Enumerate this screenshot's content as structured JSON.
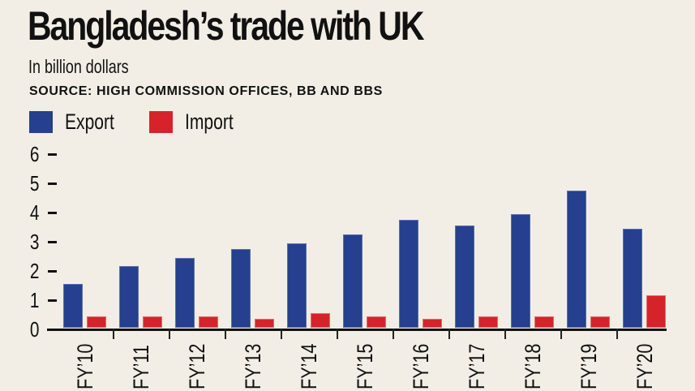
{
  "header": {
    "title": "Bangladesh’s trade with UK",
    "subtitle": "In billion dollars",
    "source": "SOURCE: HIGH COMMISSION OFFICES, BB AND BBS"
  },
  "legend": [
    {
      "label": "Export",
      "color": "#263f8f"
    },
    {
      "label": "Import",
      "color": "#d6232b"
    }
  ],
  "yaxis": {
    "ticks": [
      "0",
      "1",
      "2",
      "3",
      "4",
      "5",
      "6"
    ]
  },
  "chart_data": {
    "type": "bar",
    "title": "Bangladesh’s trade with UK",
    "subtitle": "In billion dollars",
    "source": "SOURCE: HIGH COMMISSION OFFICES, BB AND BBS",
    "xlabel": "",
    "ylabel": "",
    "ylim": [
      0,
      6
    ],
    "yticks": [
      0,
      1,
      2,
      3,
      4,
      5,
      6
    ],
    "grid": false,
    "legend_position": "top-left",
    "categories": [
      "FY’10",
      "FY’11",
      "FY’12",
      "FY’13",
      "FY’14",
      "FY’15",
      "FY’16",
      "FY’17",
      "FY’18",
      "FY’19",
      "FY’20"
    ],
    "series": [
      {
        "name": "Export",
        "color": "#263f8f",
        "values": [
          1.5,
          2.1,
          2.4,
          2.7,
          2.9,
          3.2,
          3.7,
          3.5,
          3.9,
          4.7,
          3.4
        ]
      },
      {
        "name": "Import",
        "color": "#d6232b",
        "values": [
          0.4,
          0.4,
          0.4,
          0.3,
          0.5,
          0.4,
          0.3,
          0.4,
          0.4,
          0.4,
          1.1
        ]
      }
    ]
  }
}
